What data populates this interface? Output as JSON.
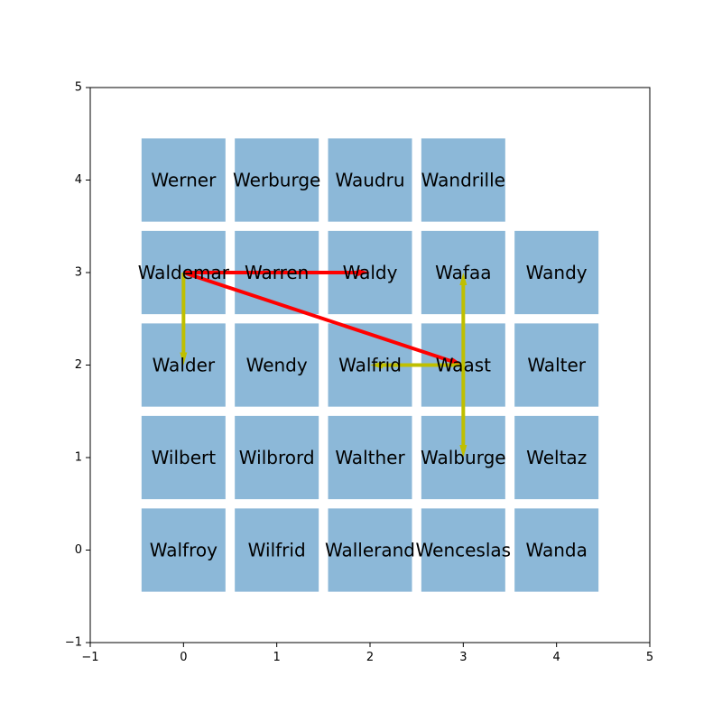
{
  "chart_data": {
    "type": "grid-diagram",
    "xlim": [
      -1,
      5
    ],
    "ylim": [
      -1,
      5
    ],
    "x_ticks": [
      "−1",
      "0",
      "1",
      "2",
      "3",
      "4",
      "5"
    ],
    "y_ticks": [
      "−1",
      "0",
      "1",
      "2",
      "3",
      "4",
      "5"
    ],
    "grid": false,
    "cell_color": "#8cb8d8",
    "cells": [
      {
        "label": "Werner",
        "x": 0,
        "y": 4
      },
      {
        "label": "Werburge",
        "x": 1,
        "y": 4
      },
      {
        "label": "Waudru",
        "x": 2,
        "y": 4
      },
      {
        "label": "Wandrille",
        "x": 3,
        "y": 4
      },
      {
        "label": "Waldemar",
        "x": 0,
        "y": 3
      },
      {
        "label": "Warren",
        "x": 1,
        "y": 3
      },
      {
        "label": "Waldy",
        "x": 2,
        "y": 3
      },
      {
        "label": "Wafaa",
        "x": 3,
        "y": 3
      },
      {
        "label": "Wandy",
        "x": 4,
        "y": 3
      },
      {
        "label": "Walder",
        "x": 0,
        "y": 2
      },
      {
        "label": "Wendy",
        "x": 1,
        "y": 2
      },
      {
        "label": "Walfrid",
        "x": 2,
        "y": 2
      },
      {
        "label": "Waast",
        "x": 3,
        "y": 2
      },
      {
        "label": "Walter",
        "x": 4,
        "y": 2
      },
      {
        "label": "Wilbert",
        "x": 0,
        "y": 1
      },
      {
        "label": "Wilbrord",
        "x": 1,
        "y": 1
      },
      {
        "label": "Walther",
        "x": 2,
        "y": 1
      },
      {
        "label": "Walburge",
        "x": 3,
        "y": 1
      },
      {
        "label": "Weltaz",
        "x": 4,
        "y": 1
      },
      {
        "label": "Walfroy",
        "x": 0,
        "y": 0
      },
      {
        "label": "Wilfrid",
        "x": 1,
        "y": 0
      },
      {
        "label": "Wallerand",
        "x": 2,
        "y": 0
      },
      {
        "label": "Wenceslas",
        "x": 3,
        "y": 0
      },
      {
        "label": "Wanda",
        "x": 4,
        "y": 0
      }
    ],
    "arrows": [
      {
        "from": [
          0,
          3
        ],
        "to": [
          2,
          3
        ],
        "color": "#ff0000"
      },
      {
        "from": [
          0,
          3
        ],
        "to": [
          3,
          2
        ],
        "color": "#ff0000"
      },
      {
        "from": [
          0,
          3
        ],
        "to": [
          0,
          2
        ],
        "color": "#bfbf00"
      },
      {
        "from": [
          3,
          2
        ],
        "to": [
          3,
          3
        ],
        "color": "#bfbf00"
      },
      {
        "from": [
          3,
          2
        ],
        "to": [
          2,
          2
        ],
        "color": "#bfbf00"
      },
      {
        "from": [
          3,
          2
        ],
        "to": [
          3,
          1
        ],
        "color": "#bfbf00"
      }
    ]
  }
}
